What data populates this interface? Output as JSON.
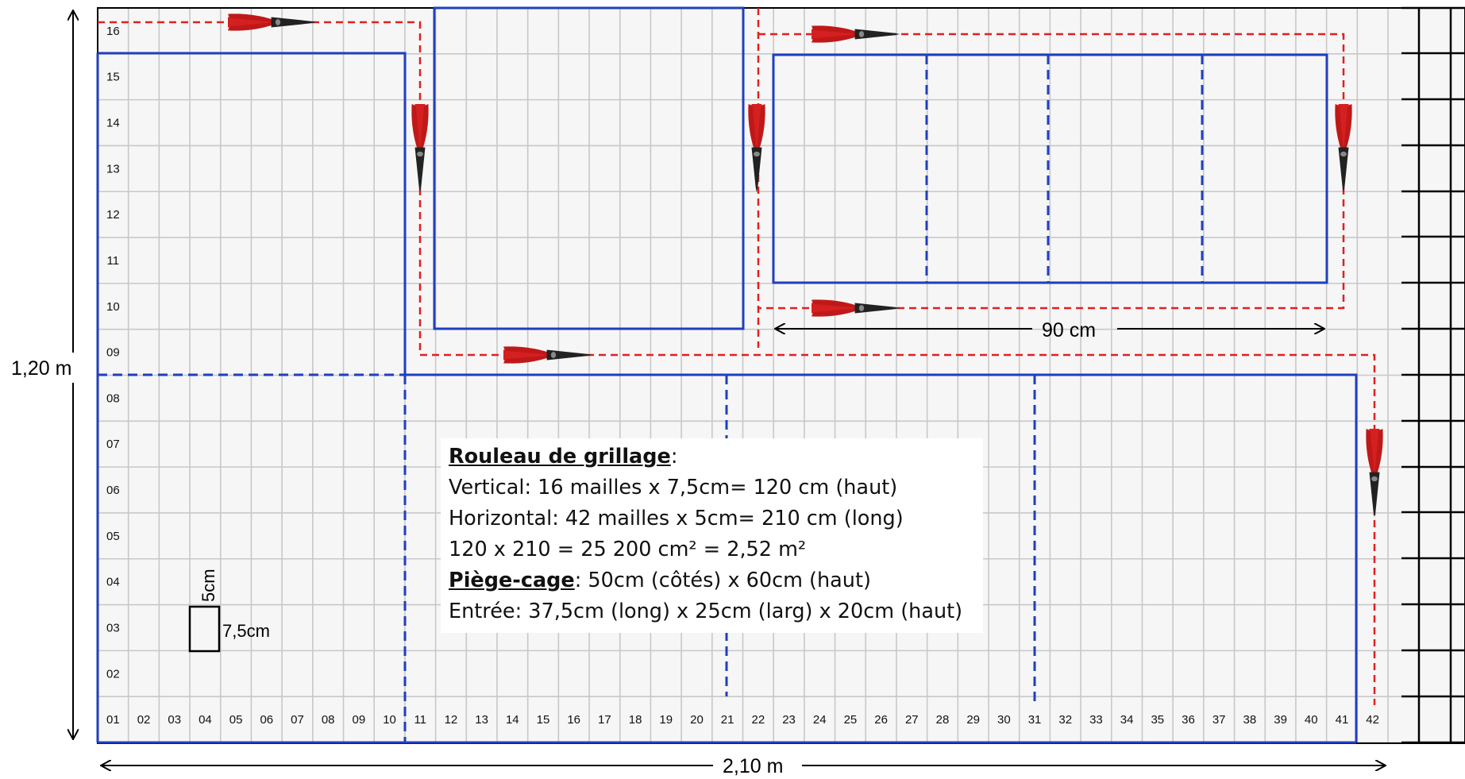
{
  "grid": {
    "columns": [
      "01",
      "02",
      "03",
      "04",
      "05",
      "06",
      "07",
      "08",
      "09",
      "10",
      "11",
      "12",
      "13",
      "14",
      "15",
      "16",
      "17",
      "18",
      "19",
      "20",
      "21",
      "22",
      "23",
      "24",
      "25",
      "26",
      "27",
      "28",
      "29",
      "30",
      "31",
      "32",
      "33",
      "34",
      "35",
      "36",
      "37",
      "38",
      "39",
      "40",
      "41",
      "42"
    ],
    "rows": [
      "16",
      "15",
      "14",
      "13",
      "12",
      "11",
      "10",
      "09",
      "08",
      "07",
      "06",
      "05",
      "04",
      "03",
      "02"
    ]
  },
  "dimensions": {
    "height_label": "1,20 m",
    "width_label": "2,10 m",
    "section_width_label": "90 cm",
    "mesh_width_label": "7,5cm",
    "mesh_height_label": "5cm"
  },
  "info": {
    "roll_heading": "Rouleau de grillage",
    "roll_colon": ":",
    "vertical": "Vertical: 16 mailles x 7,5cm= 120 cm (haut)",
    "horizontal": "Horizontal: 42 mailles x 5cm= 210 cm (long)",
    "area": "120 x 210 = 25 200 cm² = 2,52 m²",
    "trap_heading": "Piège-cage",
    "trap_rest": ": 50cm (côtés) x 60cm (haut)",
    "entrance": "Entrée: 37,5cm (long) x 25cm (larg) x 20cm (haut)"
  },
  "colors": {
    "outline_blue": "#1f3fbf",
    "cut_red": "#e02020",
    "grid_grey": "#c8c8c8"
  },
  "icons": [
    "wire-cutter-icon"
  ]
}
